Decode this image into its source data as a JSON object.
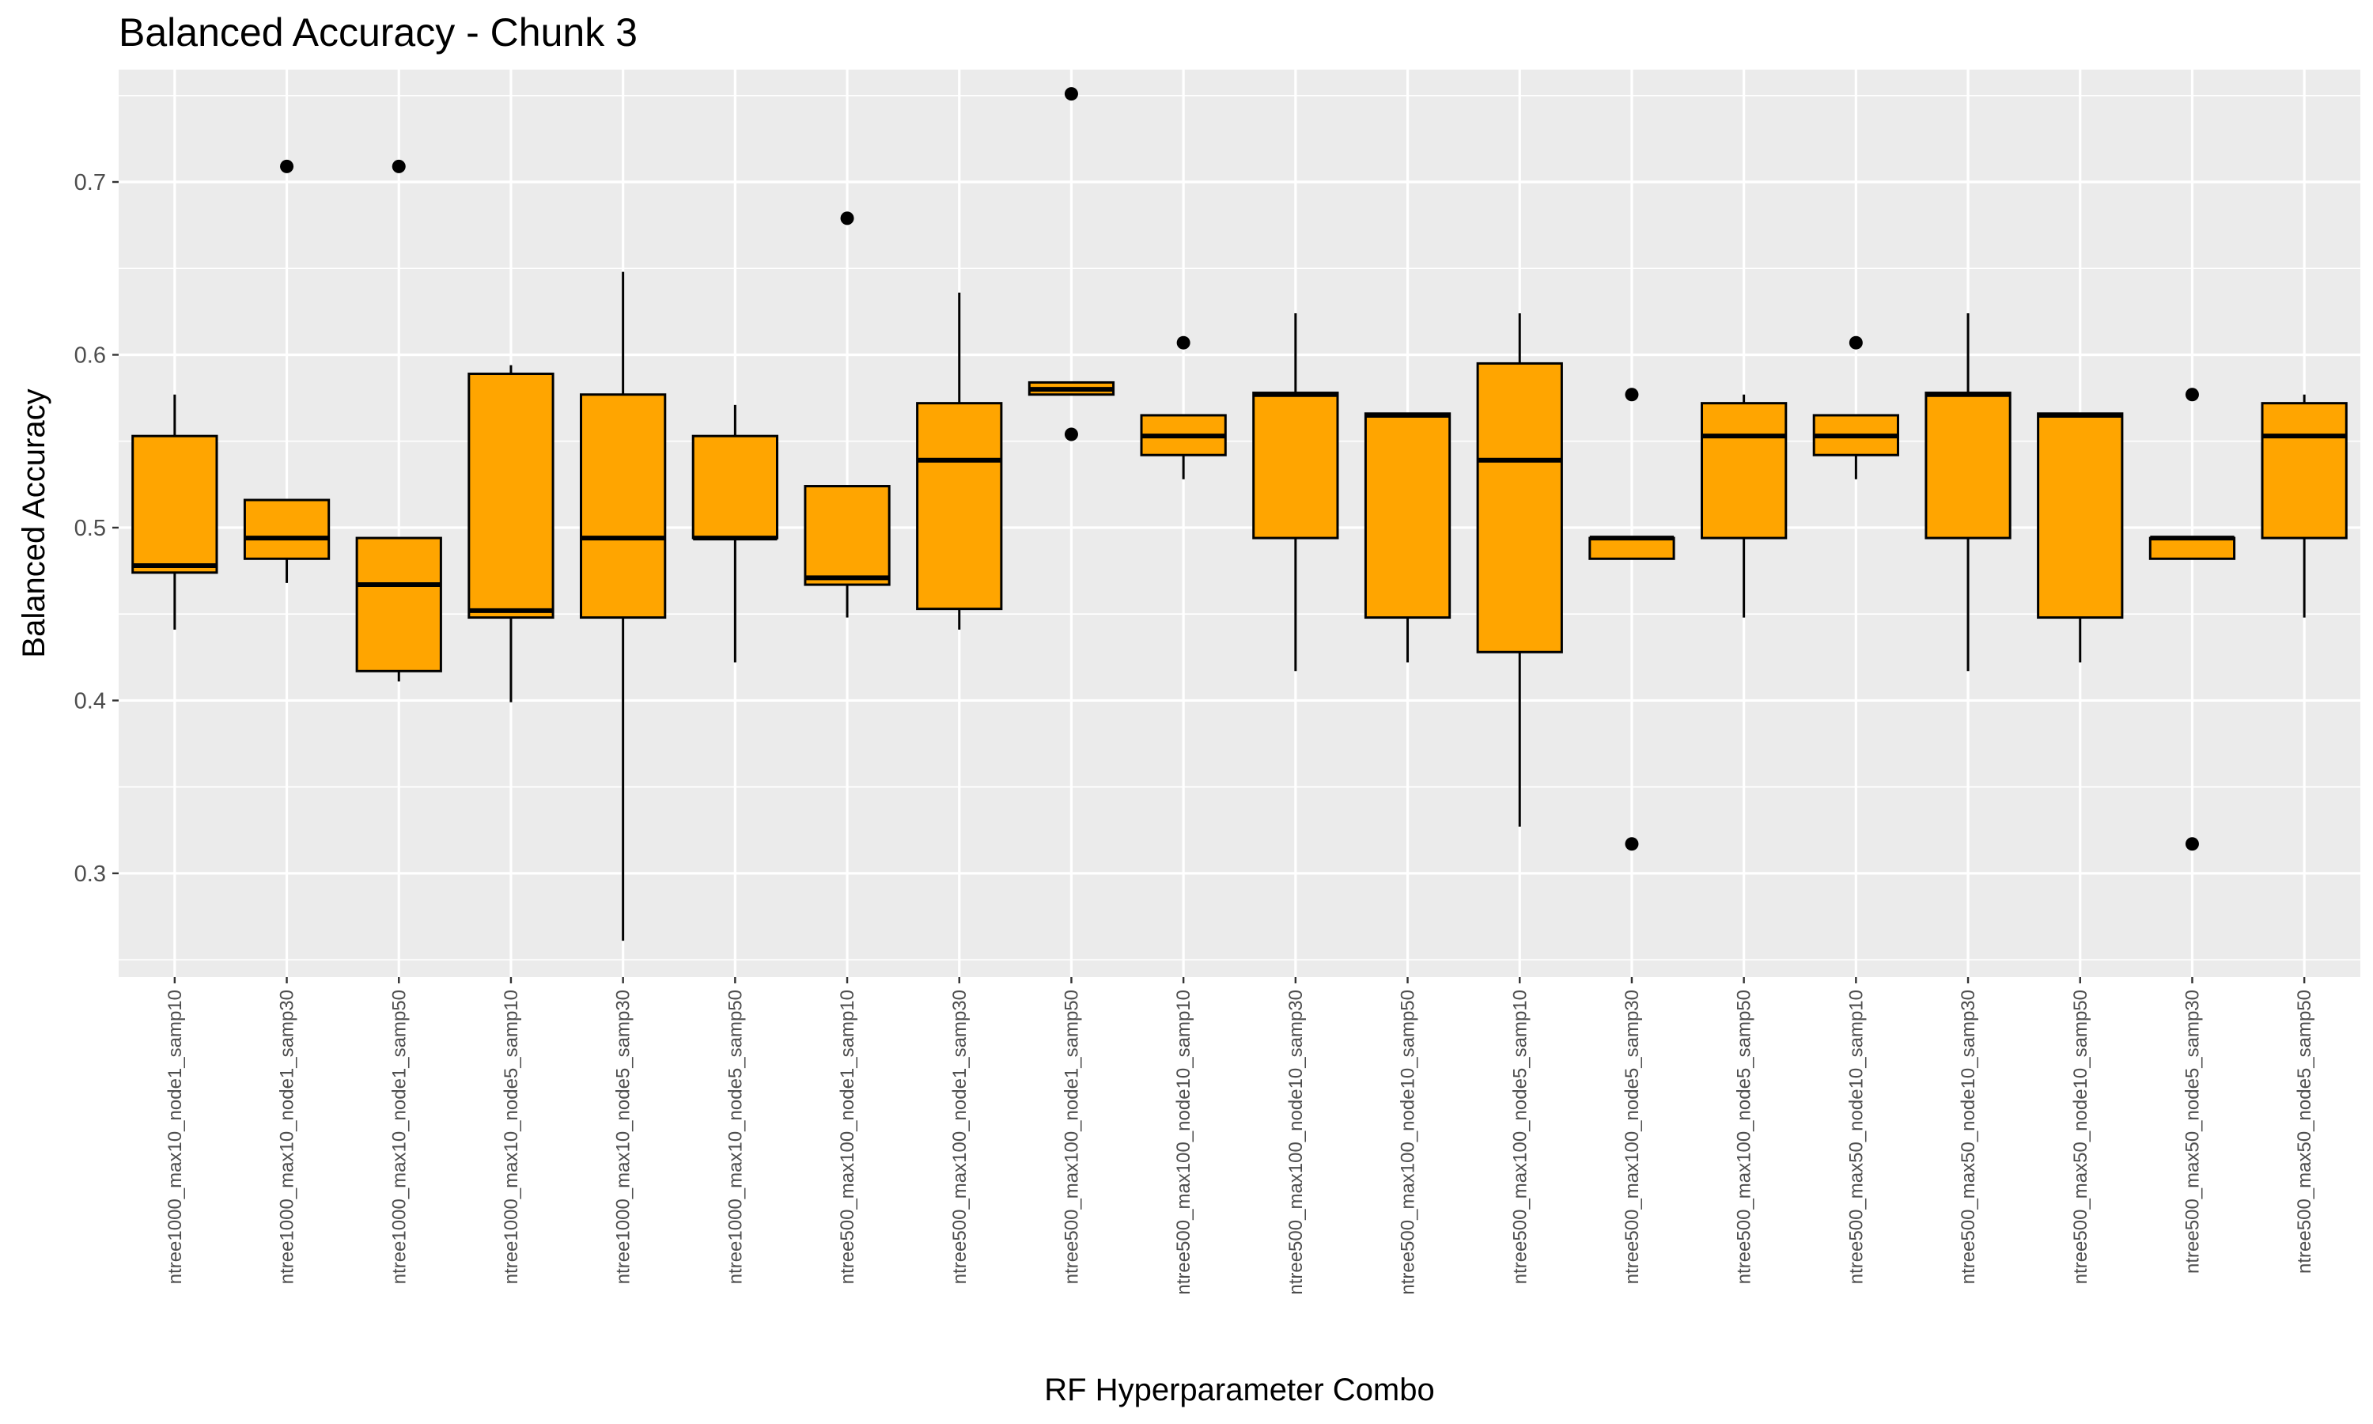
{
  "chart_data": {
    "type": "boxplot",
    "title": "Balanced Accuracy - Chunk 3",
    "xlabel": "RF Hyperparameter Combo",
    "ylabel": "Balanced Accuracy",
    "ylim": [
      0.24,
      0.765
    ],
    "yticks": [
      0.3,
      0.4,
      0.5,
      0.6,
      0.7
    ],
    "ytick_labels": [
      "0.3",
      "0.4",
      "0.5",
      "0.6",
      "0.7"
    ],
    "grid": true,
    "box_fill": "#FFA500",
    "panel_background": "#EBEBEB",
    "categories": [
      "ntree1000_max10_node1_samp10",
      "ntree1000_max10_node1_samp30",
      "ntree1000_max10_node1_samp50",
      "ntree1000_max10_node5_samp10",
      "ntree1000_max10_node5_samp30",
      "ntree1000_max10_node5_samp50",
      "ntree500_max100_node1_samp10",
      "ntree500_max100_node1_samp30",
      "ntree500_max100_node1_samp50",
      "ntree500_max100_node10_samp10",
      "ntree500_max100_node10_samp30",
      "ntree500_max100_node10_samp50",
      "ntree500_max100_node5_samp10",
      "ntree500_max100_node5_samp30",
      "ntree500_max100_node5_samp50",
      "ntree500_max50_node10_samp10",
      "ntree500_max50_node10_samp30",
      "ntree500_max50_node10_samp50",
      "ntree500_max50_node5_samp30",
      "ntree500_max50_node5_samp50"
    ],
    "boxes": [
      {
        "lower": 0.441,
        "q1": 0.474,
        "median": 0.478,
        "q3": 0.553,
        "upper": 0.577,
        "outliers": []
      },
      {
        "lower": 0.468,
        "q1": 0.482,
        "median": 0.494,
        "q3": 0.516,
        "upper": 0.516,
        "outliers": [
          0.709
        ]
      },
      {
        "lower": 0.411,
        "q1": 0.417,
        "median": 0.467,
        "q3": 0.494,
        "upper": 0.494,
        "outliers": [
          0.709
        ]
      },
      {
        "lower": 0.399,
        "q1": 0.448,
        "median": 0.452,
        "q3": 0.589,
        "upper": 0.594,
        "outliers": []
      },
      {
        "lower": 0.261,
        "q1": 0.448,
        "median": 0.494,
        "q3": 0.577,
        "upper": 0.648,
        "outliers": []
      },
      {
        "lower": 0.422,
        "q1": 0.494,
        "median": 0.494,
        "q3": 0.553,
        "upper": 0.571,
        "outliers": []
      },
      {
        "lower": 0.448,
        "q1": 0.467,
        "median": 0.471,
        "q3": 0.524,
        "upper": 0.524,
        "outliers": [
          0.679
        ]
      },
      {
        "lower": 0.441,
        "q1": 0.453,
        "median": 0.539,
        "q3": 0.572,
        "upper": 0.636,
        "outliers": []
      },
      {
        "lower": 0.577,
        "q1": 0.577,
        "median": 0.58,
        "q3": 0.584,
        "upper": 0.584,
        "outliers": [
          0.554,
          0.751
        ]
      },
      {
        "lower": 0.528,
        "q1": 0.542,
        "median": 0.553,
        "q3": 0.565,
        "upper": 0.565,
        "outliers": [
          0.607
        ]
      },
      {
        "lower": 0.417,
        "q1": 0.494,
        "median": 0.577,
        "q3": 0.578,
        "upper": 0.624,
        "outliers": []
      },
      {
        "lower": 0.422,
        "q1": 0.448,
        "median": 0.565,
        "q3": 0.566,
        "upper": 0.566,
        "outliers": []
      },
      {
        "lower": 0.327,
        "q1": 0.428,
        "median": 0.539,
        "q3": 0.595,
        "upper": 0.624,
        "outliers": []
      },
      {
        "lower": 0.482,
        "q1": 0.482,
        "median": 0.494,
        "q3": 0.494,
        "upper": 0.494,
        "outliers": [
          0.317,
          0.577
        ]
      },
      {
        "lower": 0.448,
        "q1": 0.494,
        "median": 0.553,
        "q3": 0.572,
        "upper": 0.577,
        "outliers": []
      },
      {
        "lower": 0.528,
        "q1": 0.542,
        "median": 0.553,
        "q3": 0.565,
        "upper": 0.565,
        "outliers": [
          0.607
        ]
      },
      {
        "lower": 0.417,
        "q1": 0.494,
        "median": 0.577,
        "q3": 0.578,
        "upper": 0.624,
        "outliers": []
      },
      {
        "lower": 0.422,
        "q1": 0.448,
        "median": 0.565,
        "q3": 0.566,
        "upper": 0.566,
        "outliers": []
      },
      {
        "lower": 0.482,
        "q1": 0.482,
        "median": 0.494,
        "q3": 0.494,
        "upper": 0.494,
        "outliers": [
          0.317,
          0.577
        ]
      },
      {
        "lower": 0.448,
        "q1": 0.494,
        "median": 0.553,
        "q3": 0.572,
        "upper": 0.577,
        "outliers": []
      }
    ]
  }
}
